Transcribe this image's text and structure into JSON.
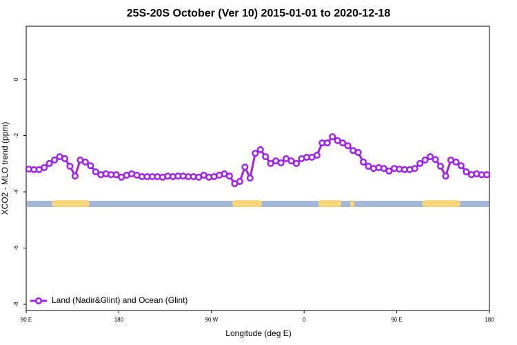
{
  "chart_data": {
    "type": "line",
    "title": "25S-20S October (Ver 10)   2015-01-01 to 2020-12-18",
    "x_label": "Longitude (deg E)",
    "y_label": "XCO2 - MLO trend (ppm)",
    "xlim": [
      90,
      540
    ],
    "xticks": [
      {
        "value": 90,
        "label": "90 E"
      },
      180,
      {
        "value": 270,
        "label": "90 W"
      },
      {
        "value": 360,
        "label": "0"
      },
      {
        "value": 450,
        "label": "90 E"
      },
      {
        "value": 540,
        "label": "180"
      }
    ],
    "ylim": [
      -8.22,
      1.89
    ],
    "yticks": [
      0,
      -2,
      -4,
      -6,
      -8
    ],
    "legend_position": "bottom-left",
    "x": [
      92.5,
      97.5,
      102.5,
      107.5,
      112.5,
      117.5,
      122.5,
      127.5,
      132.5,
      137.5,
      142.5,
      147.5,
      152.5,
      157.5,
      162.5,
      167.5,
      172.5,
      177.5,
      182.5,
      187.5,
      192.5,
      197.5,
      202.5,
      207.5,
      212.5,
      217.5,
      222.5,
      227.5,
      232.5,
      237.5,
      242.5,
      247.5,
      252.5,
      257.5,
      262.5,
      267.5,
      272.5,
      277.5,
      282.5,
      287.5,
      292.5,
      297.5,
      302.5,
      307.5,
      312.5,
      317.5,
      322.5,
      327.5,
      332.5,
      337.5,
      342.5,
      347.5,
      352.5,
      357.5,
      362.5,
      367.5,
      372.5,
      377.5,
      382.5,
      387.5,
      392.5,
      397.5,
      402.5,
      407.5,
      412.5,
      417.5,
      422.5,
      427.5,
      432.5,
      437.5,
      442.5,
      447.5,
      452.5,
      457.5,
      462.5,
      467.5,
      472.5,
      477.5,
      482.5,
      487.5,
      492.5,
      497.5,
      502.5,
      507.5,
      512.5,
      517.5,
      522.5,
      527.5,
      532.5,
      537.5
    ],
    "series": [
      {
        "name": "Land (Nadir&Glint) and Ocean (Glint)",
        "color": "#a020f0",
        "values": [
          -3.19,
          -3.21,
          -3.21,
          -3.14,
          -2.99,
          -2.87,
          -2.75,
          -2.82,
          -3.09,
          -3.44,
          -2.87,
          -2.94,
          -3.07,
          -3.29,
          -3.39,
          -3.36,
          -3.39,
          -3.39,
          -3.48,
          -3.41,
          -3.36,
          -3.41,
          -3.46,
          -3.46,
          -3.46,
          -3.46,
          -3.48,
          -3.44,
          -3.46,
          -3.44,
          -3.44,
          -3.46,
          -3.46,
          -3.48,
          -3.41,
          -3.48,
          -3.46,
          -3.41,
          -3.36,
          -3.44,
          -3.71,
          -3.63,
          -3.12,
          -3.51,
          -2.63,
          -2.5,
          -2.75,
          -2.99,
          -2.9,
          -2.97,
          -2.82,
          -2.9,
          -2.99,
          -2.82,
          -2.77,
          -2.77,
          -2.7,
          -2.26,
          -2.26,
          -2.04,
          -2.18,
          -2.26,
          -2.36,
          -2.53,
          -2.6,
          -2.94,
          -3.09,
          -3.17,
          -3.14,
          -3.17,
          -3.26,
          -3.17,
          -3.19,
          -3.21,
          -3.21,
          -3.17,
          -2.99,
          -2.87,
          -2.75,
          -2.85,
          -3.09,
          -3.44,
          -2.87,
          -2.94,
          -3.07,
          -3.29,
          -3.39,
          -3.36,
          -3.39,
          -3.39
        ]
      }
    ]
  }
}
